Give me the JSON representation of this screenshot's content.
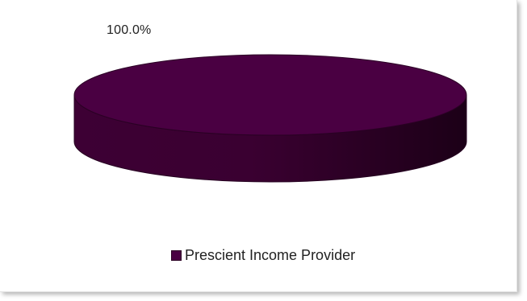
{
  "colors": {
    "slice_top": "#4a0042",
    "slice_side_light": "#440039",
    "slice_side_dark": "#1c0017"
  },
  "chart_data": {
    "type": "pie",
    "style": "3d",
    "categories": [
      "Prescient Income Provider"
    ],
    "values": [
      100.0
    ],
    "data_labels": [
      "100.0%"
    ],
    "legend": {
      "position": "bottom",
      "entries": [
        "Prescient Income Provider"
      ]
    }
  }
}
